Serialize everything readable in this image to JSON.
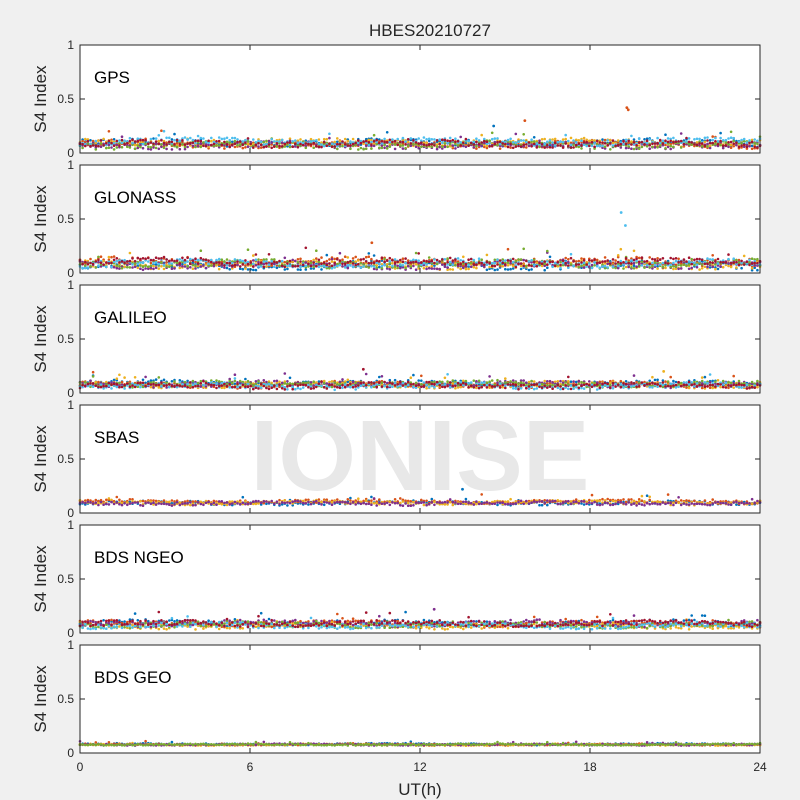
{
  "figure": {
    "title": "HBES20210727",
    "xlabel": "UT(h)",
    "ylabel": "S4 Index",
    "watermark": "IONISE"
  },
  "colors": [
    "#0072BD",
    "#D95319",
    "#EDB120",
    "#7E2F8E",
    "#77AC30",
    "#4DBEEE",
    "#A2142F"
  ],
  "chart_data": [
    {
      "type": "scatter",
      "title": "GPS",
      "xlabel": "UT(h)",
      "ylabel": "S4 Index",
      "xlim": [
        0,
        24
      ],
      "ylim": [
        0,
        1
      ],
      "xticks": [
        0,
        6,
        12,
        18,
        24
      ],
      "yticks": [
        0,
        0.5,
        1
      ],
      "series_profile": {
        "baseline": 0.09,
        "spread": 0.035,
        "num_series": 7
      },
      "annotations": [
        {
          "x": 19.3,
          "y": 0.42,
          "color_index": 1
        },
        {
          "x": 19.35,
          "y": 0.4,
          "color_index": 1
        },
        {
          "x": 15.7,
          "y": 0.3,
          "color_index": 1
        },
        {
          "x": 14.6,
          "y": 0.25,
          "color_index": 0
        }
      ]
    },
    {
      "type": "scatter",
      "title": "GLONASS",
      "xlabel": "UT(h)",
      "ylabel": "S4 Index",
      "xlim": [
        0,
        24
      ],
      "ylim": [
        0,
        1
      ],
      "xticks": [
        0,
        6,
        12,
        18,
        24
      ],
      "yticks": [
        0,
        0.5,
        1
      ],
      "series_profile": {
        "baseline": 0.09,
        "spread": 0.04,
        "num_series": 7
      },
      "annotations": [
        {
          "x": 19.1,
          "y": 0.56,
          "color_index": 5
        },
        {
          "x": 19.25,
          "y": 0.44,
          "color_index": 5
        },
        {
          "x": 10.3,
          "y": 0.28,
          "color_index": 1
        }
      ]
    },
    {
      "type": "scatter",
      "title": "GALILEO",
      "xlabel": "UT(h)",
      "ylabel": "S4 Index",
      "xlim": [
        0,
        24
      ],
      "ylim": [
        0,
        1
      ],
      "xticks": [
        0,
        6,
        12,
        18,
        24
      ],
      "yticks": [
        0,
        0.5,
        1
      ],
      "series_profile": {
        "baseline": 0.08,
        "spread": 0.03,
        "num_series": 7
      },
      "annotations": [
        {
          "x": 10.0,
          "y": 0.22,
          "color_index": 6
        },
        {
          "x": 20.6,
          "y": 0.2,
          "color_index": 2
        }
      ]
    },
    {
      "type": "scatter",
      "title": "SBAS",
      "xlabel": "UT(h)",
      "ylabel": "S4 Index",
      "xlim": [
        0,
        24
      ],
      "ylim": [
        0,
        1
      ],
      "xticks": [
        0,
        6,
        12,
        18,
        24
      ],
      "yticks": [
        0,
        0.5,
        1
      ],
      "series_profile": {
        "baseline": 0.1,
        "spread": 0.02,
        "num_series": 4
      },
      "annotations": [
        {
          "x": 13.5,
          "y": 0.22,
          "color_index": 0
        }
      ]
    },
    {
      "type": "scatter",
      "title": "BDS NGEO",
      "xlabel": "UT(h)",
      "ylabel": "S4 Index",
      "xlim": [
        0,
        24
      ],
      "ylim": [
        0,
        1
      ],
      "xticks": [
        0,
        6,
        12,
        18,
        24
      ],
      "yticks": [
        0,
        0.5,
        1
      ],
      "series_profile": {
        "baseline": 0.08,
        "spread": 0.03,
        "num_series": 7
      },
      "annotations": [
        {
          "x": 12.5,
          "y": 0.22,
          "color_index": 3
        }
      ]
    },
    {
      "type": "scatter",
      "title": "BDS GEO",
      "xlabel": "UT(h)",
      "ylabel": "S4 Index",
      "xlim": [
        0,
        24
      ],
      "ylim": [
        0,
        1
      ],
      "xticks": [
        0,
        6,
        12,
        18,
        24
      ],
      "yticks": [
        0,
        0.5,
        1
      ],
      "series_profile": {
        "baseline": 0.08,
        "spread": 0.008,
        "num_series": 5
      },
      "annotations": []
    }
  ]
}
